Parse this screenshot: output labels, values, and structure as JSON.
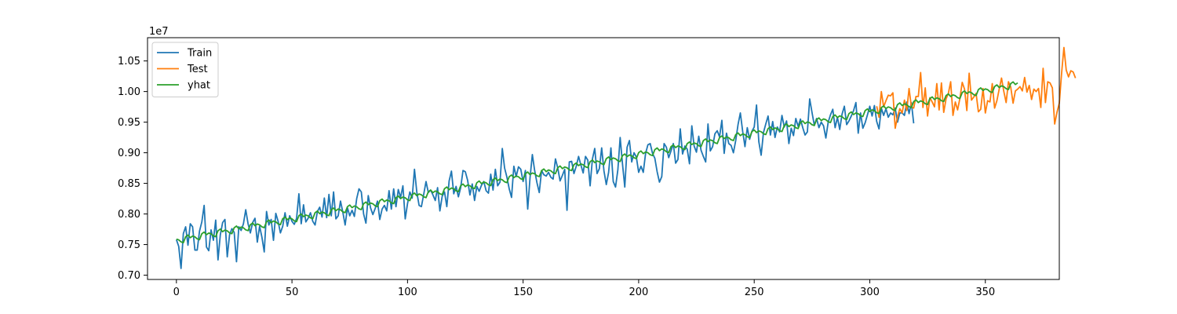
{
  "chart_data": {
    "type": "line",
    "title": "",
    "xlabel": "",
    "ylabel": "",
    "y_offset_label": "1e7",
    "xlim": [
      -12.5,
      382
    ],
    "ylim": [
      6.93,
      10.88
    ],
    "x_ticks": [
      0,
      50,
      100,
      150,
      200,
      250,
      300,
      350
    ],
    "x_tick_labels": [
      "0",
      "50",
      "100",
      "150",
      "200",
      "250",
      "300",
      "350"
    ],
    "y_ticks": [
      7.0,
      7.5,
      8.0,
      8.5,
      9.0,
      9.5,
      10.0,
      10.5
    ],
    "y_tick_labels": [
      "0.70",
      "0.75",
      "0.80",
      "0.85",
      "0.90",
      "0.95",
      "1.00",
      "1.05"
    ],
    "grid": false,
    "legend_position": "top-left",
    "series": [
      {
        "name": "Train",
        "color": "#1f77b4",
        "x_start": 0,
        "values": [
          7.58,
          7.47,
          7.11,
          7.68,
          7.79,
          7.49,
          7.84,
          7.79,
          7.41,
          7.41,
          7.72,
          7.87,
          8.14,
          7.46,
          7.4,
          7.74,
          7.57,
          7.9,
          7.25,
          7.66,
          7.86,
          7.91,
          7.3,
          7.66,
          7.76,
          7.7,
          7.22,
          7.79,
          7.73,
          7.84,
          8.07,
          7.84,
          7.69,
          7.86,
          7.93,
          7.54,
          7.8,
          7.62,
          7.38,
          8.04,
          7.82,
          7.91,
          7.57,
          8.01,
          7.88,
          7.69,
          7.8,
          8.02,
          7.8,
          7.97,
          7.88,
          7.83,
          7.93,
          8.33,
          7.84,
          8.15,
          7.87,
          7.93,
          8.02,
          7.88,
          7.82,
          8.04,
          8.11,
          7.95,
          8.26,
          7.94,
          8.32,
          7.97,
          8.36,
          7.92,
          7.97,
          8.21,
          8.03,
          7.82,
          8.1,
          7.97,
          8.06,
          7.96,
          8.25,
          8.41,
          8.36,
          8.0,
          7.85,
          8.3,
          8.1,
          7.99,
          8.09,
          8.21,
          7.91,
          8.08,
          8.14,
          8.05,
          8.38,
          8.08,
          8.41,
          8.12,
          8.4,
          8.27,
          8.46,
          7.92,
          8.17,
          8.36,
          8.26,
          8.73,
          8.36,
          8.14,
          8.12,
          8.32,
          8.53,
          8.35,
          8.39,
          8.31,
          8.22,
          8.43,
          8.05,
          8.29,
          8.36,
          8.12,
          8.54,
          8.7,
          8.33,
          8.45,
          8.28,
          8.43,
          8.71,
          8.69,
          8.55,
          8.31,
          8.49,
          8.22,
          8.45,
          8.37,
          8.47,
          8.53,
          8.38,
          8.34,
          8.65,
          8.39,
          8.73,
          8.46,
          8.52,
          9.07,
          8.75,
          8.6,
          8.41,
          8.27,
          8.78,
          8.61,
          8.77,
          8.73,
          8.53,
          8.71,
          8.08,
          8.59,
          8.97,
          8.71,
          8.51,
          8.35,
          8.71,
          8.64,
          8.62,
          8.68,
          8.6,
          8.57,
          8.9,
          8.75,
          8.54,
          8.63,
          8.73,
          8.06,
          8.85,
          8.86,
          8.66,
          8.78,
          8.94,
          8.8,
          8.67,
          8.94,
          8.88,
          8.46,
          8.9,
          9.07,
          8.66,
          8.74,
          9.08,
          8.7,
          8.48,
          8.68,
          9.08,
          8.53,
          8.44,
          8.72,
          9.25,
          8.82,
          8.44,
          9.09,
          9.2,
          8.85,
          9.0,
          8.93,
          8.68,
          8.78,
          8.68,
          8.99,
          9.13,
          9.15,
          8.99,
          8.91,
          8.69,
          8.52,
          8.61,
          9.15,
          9.09,
          8.92,
          9.03,
          9.15,
          8.83,
          8.89,
          9.39,
          8.98,
          9.11,
          9.06,
          8.82,
          9.44,
          9.11,
          9.01,
          9.27,
          9.04,
          8.94,
          8.85,
          9.47,
          9.03,
          9.1,
          9.31,
          9.36,
          9.26,
          9.53,
          8.99,
          9.32,
          9.15,
          9.12,
          9.0,
          9.2,
          9.46,
          9.65,
          9.35,
          9.1,
          9.41,
          9.22,
          9.35,
          9.42,
          9.78,
          9.18,
          8.96,
          9.33,
          9.47,
          9.6,
          9.29,
          9.51,
          9.25,
          9.42,
          9.34,
          9.61,
          9.42,
          9.52,
          9.15,
          9.4,
          9.28,
          9.56,
          9.43,
          9.55,
          9.41,
          9.29,
          9.34,
          9.88,
          9.66,
          9.45,
          9.56,
          9.41,
          9.5,
          9.44,
          9.24,
          9.5,
          9.62,
          9.71,
          9.41,
          9.58,
          9.38,
          9.63,
          9.76,
          9.46,
          9.52,
          9.6,
          9.69,
          9.82,
          9.32,
          9.65,
          9.4,
          9.49,
          9.62,
          9.76,
          9.6,
          9.77,
          9.51,
          9.39,
          9.73,
          9.61,
          9.72,
          9.58,
          9.65,
          9.62,
          9.73,
          9.5,
          9.65,
          9.65,
          9.61,
          9.83,
          9.64,
          9.82,
          9.48
        ]
      },
      {
        "name": "Test",
        "color": "#ff7f0e",
        "x_start": 303,
        "values": [
          9.76,
          9.58,
          10.0,
          9.75,
          9.85,
          9.94,
          9.93,
          9.98,
          9.4,
          9.59,
          9.72,
          9.65,
          9.86,
          9.69,
          10.05,
          9.75,
          9.73,
          9.92,
          9.92,
          10.31,
          9.74,
          10.06,
          9.6,
          9.9,
          9.83,
          9.75,
          10.13,
          9.7,
          10.14,
          9.66,
          9.88,
          9.97,
          10.16,
          9.61,
          9.83,
          9.7,
          9.89,
          10.15,
          10.04,
          9.69,
          10.3,
          9.86,
          9.91,
          9.97,
          9.67,
          9.71,
          10.05,
          9.65,
          9.85,
          9.83,
          10.13,
          9.73,
          9.85,
          10.04,
          10.22,
          10.0,
          9.82,
          10.16,
          10.07,
          9.81,
          10.01,
          10.04,
          10.08,
          10.01,
          10.23,
          9.99,
          10.1,
          9.87,
          10.04,
          10.0,
          10.05,
          9.74,
          10.38,
          9.82,
          10.16,
          10.14,
          10.06,
          9.47,
          9.66,
          9.81,
          10.3,
          10.72,
          10.35,
          10.24,
          10.34,
          10.32,
          10.22
        ]
      },
      {
        "name": "yhat",
        "color": "#2ca02c",
        "x_start": 0,
        "intercept": 7.57,
        "slope": 0.00701,
        "pattern": [
          0.02,
          0.0,
          -0.04,
          -0.06,
          0.03,
          0.05,
          0.0
        ]
      }
    ]
  }
}
